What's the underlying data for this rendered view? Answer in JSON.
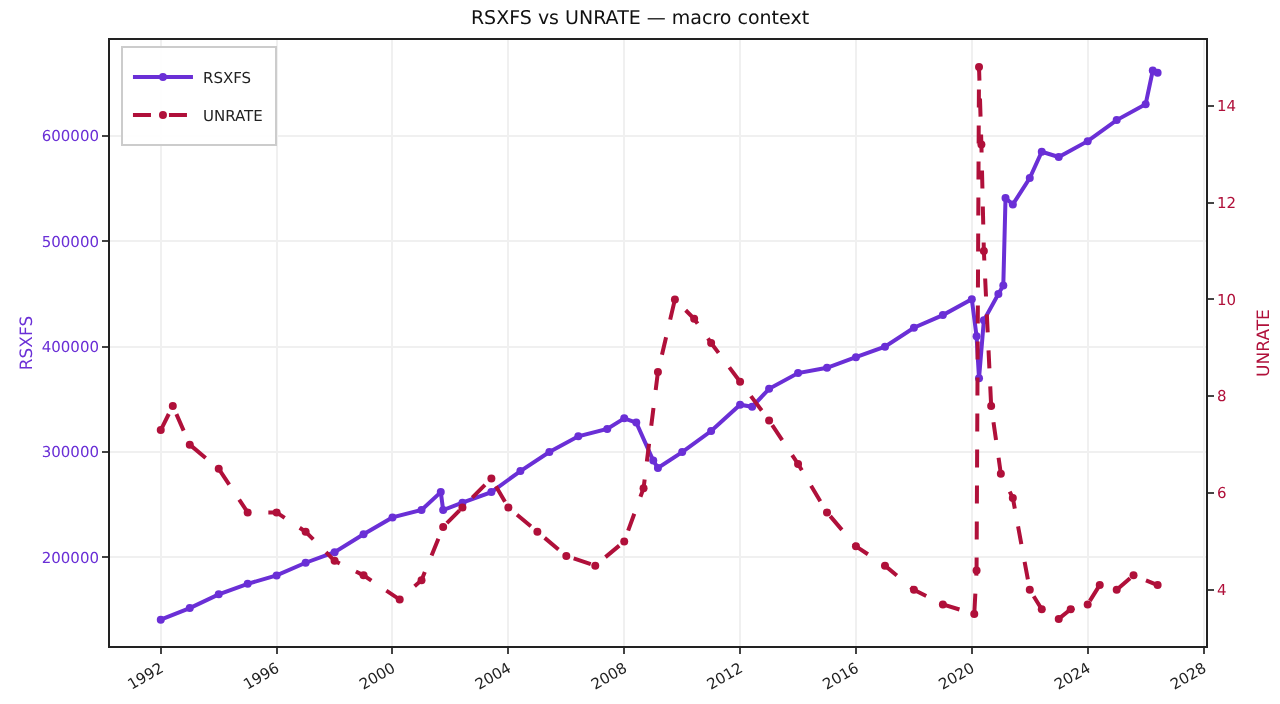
{
  "chart_data": {
    "type": "line",
    "title": "RSXFS vs UNRATE — macro context",
    "ylabel": "RSXFS",
    "y2label": "UNRATE",
    "xlim": [
      "1990-04",
      "2028-02"
    ],
    "xticks": [
      "1992",
      "1996",
      "2000",
      "2004",
      "2008",
      "2012",
      "2016",
      "2020",
      "2024",
      "2028"
    ],
    "ylim": [
      116000,
      691000
    ],
    "yticks": [
      200000,
      300000,
      400000,
      500000,
      600000
    ],
    "y2lim": [
      2.84,
      15.36
    ],
    "y2ticks": [
      4,
      6,
      8,
      10,
      12,
      14
    ],
    "grid": true,
    "legend": "top left",
    "marker": "circle",
    "series": [
      {
        "name": "RSXFS",
        "color": "#6a2fd6",
        "line_style": "solid",
        "x": [
          "1992-01",
          "1993-01",
          "1994-01",
          "1995-01",
          "1996-01",
          "1997-01",
          "1998-01",
          "1999-01",
          "2000-01",
          "2001-01",
          "2001-09",
          "2001-10",
          "2002-06",
          "2003-06",
          "2004-06",
          "2005-06",
          "2006-06",
          "2007-06",
          "2008-01",
          "2008-06",
          "2009-01",
          "2009-03",
          "2010-01",
          "2011-01",
          "2012-01",
          "2012-06",
          "2013-01",
          "2014-01",
          "2015-01",
          "2016-01",
          "2017-01",
          "2018-01",
          "2019-01",
          "2020-01",
          "2020-03",
          "2020-04",
          "2020-06",
          "2020-12",
          "2021-02",
          "2021-03",
          "2021-06",
          "2022-01",
          "2022-06",
          "2023-01",
          "2024-01",
          "2025-01",
          "2026-01",
          "2026-04",
          "2026-06"
        ],
        "values": [
          141000,
          152000,
          165000,
          175000,
          183000,
          195000,
          205000,
          222000,
          238000,
          245000,
          262000,
          245000,
          252000,
          262000,
          282000,
          300000,
          315000,
          322000,
          332000,
          328000,
          292000,
          285000,
          300000,
          320000,
          345000,
          343000,
          360000,
          375000,
          380000,
          390000,
          400000,
          418000,
          430000,
          445000,
          410000,
          370000,
          425000,
          450000,
          458000,
          541000,
          535000,
          560000,
          585000,
          580000,
          595000,
          615000,
          630000,
          662000,
          660000
        ]
      },
      {
        "name": "UNRATE",
        "color": "#b0103a",
        "line_style": "dashed",
        "axis": "y2",
        "x": [
          "1992-01",
          "1992-06",
          "1993-01",
          "1994-01",
          "1995-01",
          "1996-01",
          "1997-01",
          "1998-01",
          "1999-01",
          "2000-04",
          "2001-01",
          "2001-10",
          "2002-06",
          "2003-06",
          "2004-01",
          "2005-01",
          "2006-01",
          "2007-01",
          "2008-01",
          "2008-09",
          "2009-03",
          "2009-10",
          "2010-06",
          "2011-01",
          "2012-01",
          "2013-01",
          "2014-01",
          "2015-01",
          "2016-01",
          "2017-01",
          "2018-01",
          "2019-01",
          "2020-02",
          "2020-03",
          "2020-04",
          "2020-05",
          "2020-06",
          "2020-09",
          "2021-01",
          "2021-06",
          "2022-01",
          "2022-06",
          "2023-01",
          "2023-06",
          "2024-01",
          "2024-06",
          "2025-01",
          "2025-08",
          "2026-06"
        ],
        "values": [
          7.3,
          7.8,
          7.0,
          6.5,
          5.6,
          5.6,
          5.2,
          4.6,
          4.3,
          3.8,
          4.2,
          5.3,
          5.7,
          6.3,
          5.7,
          5.2,
          4.7,
          4.5,
          5.0,
          6.1,
          8.5,
          10.0,
          9.6,
          9.1,
          8.3,
          7.5,
          6.6,
          5.6,
          4.9,
          4.5,
          4.0,
          3.7,
          3.5,
          4.4,
          14.8,
          13.2,
          11.0,
          7.8,
          6.4,
          5.9,
          4.0,
          3.6,
          3.4,
          3.6,
          3.7,
          4.1,
          4.0,
          4.3,
          4.1
        ]
      }
    ]
  }
}
